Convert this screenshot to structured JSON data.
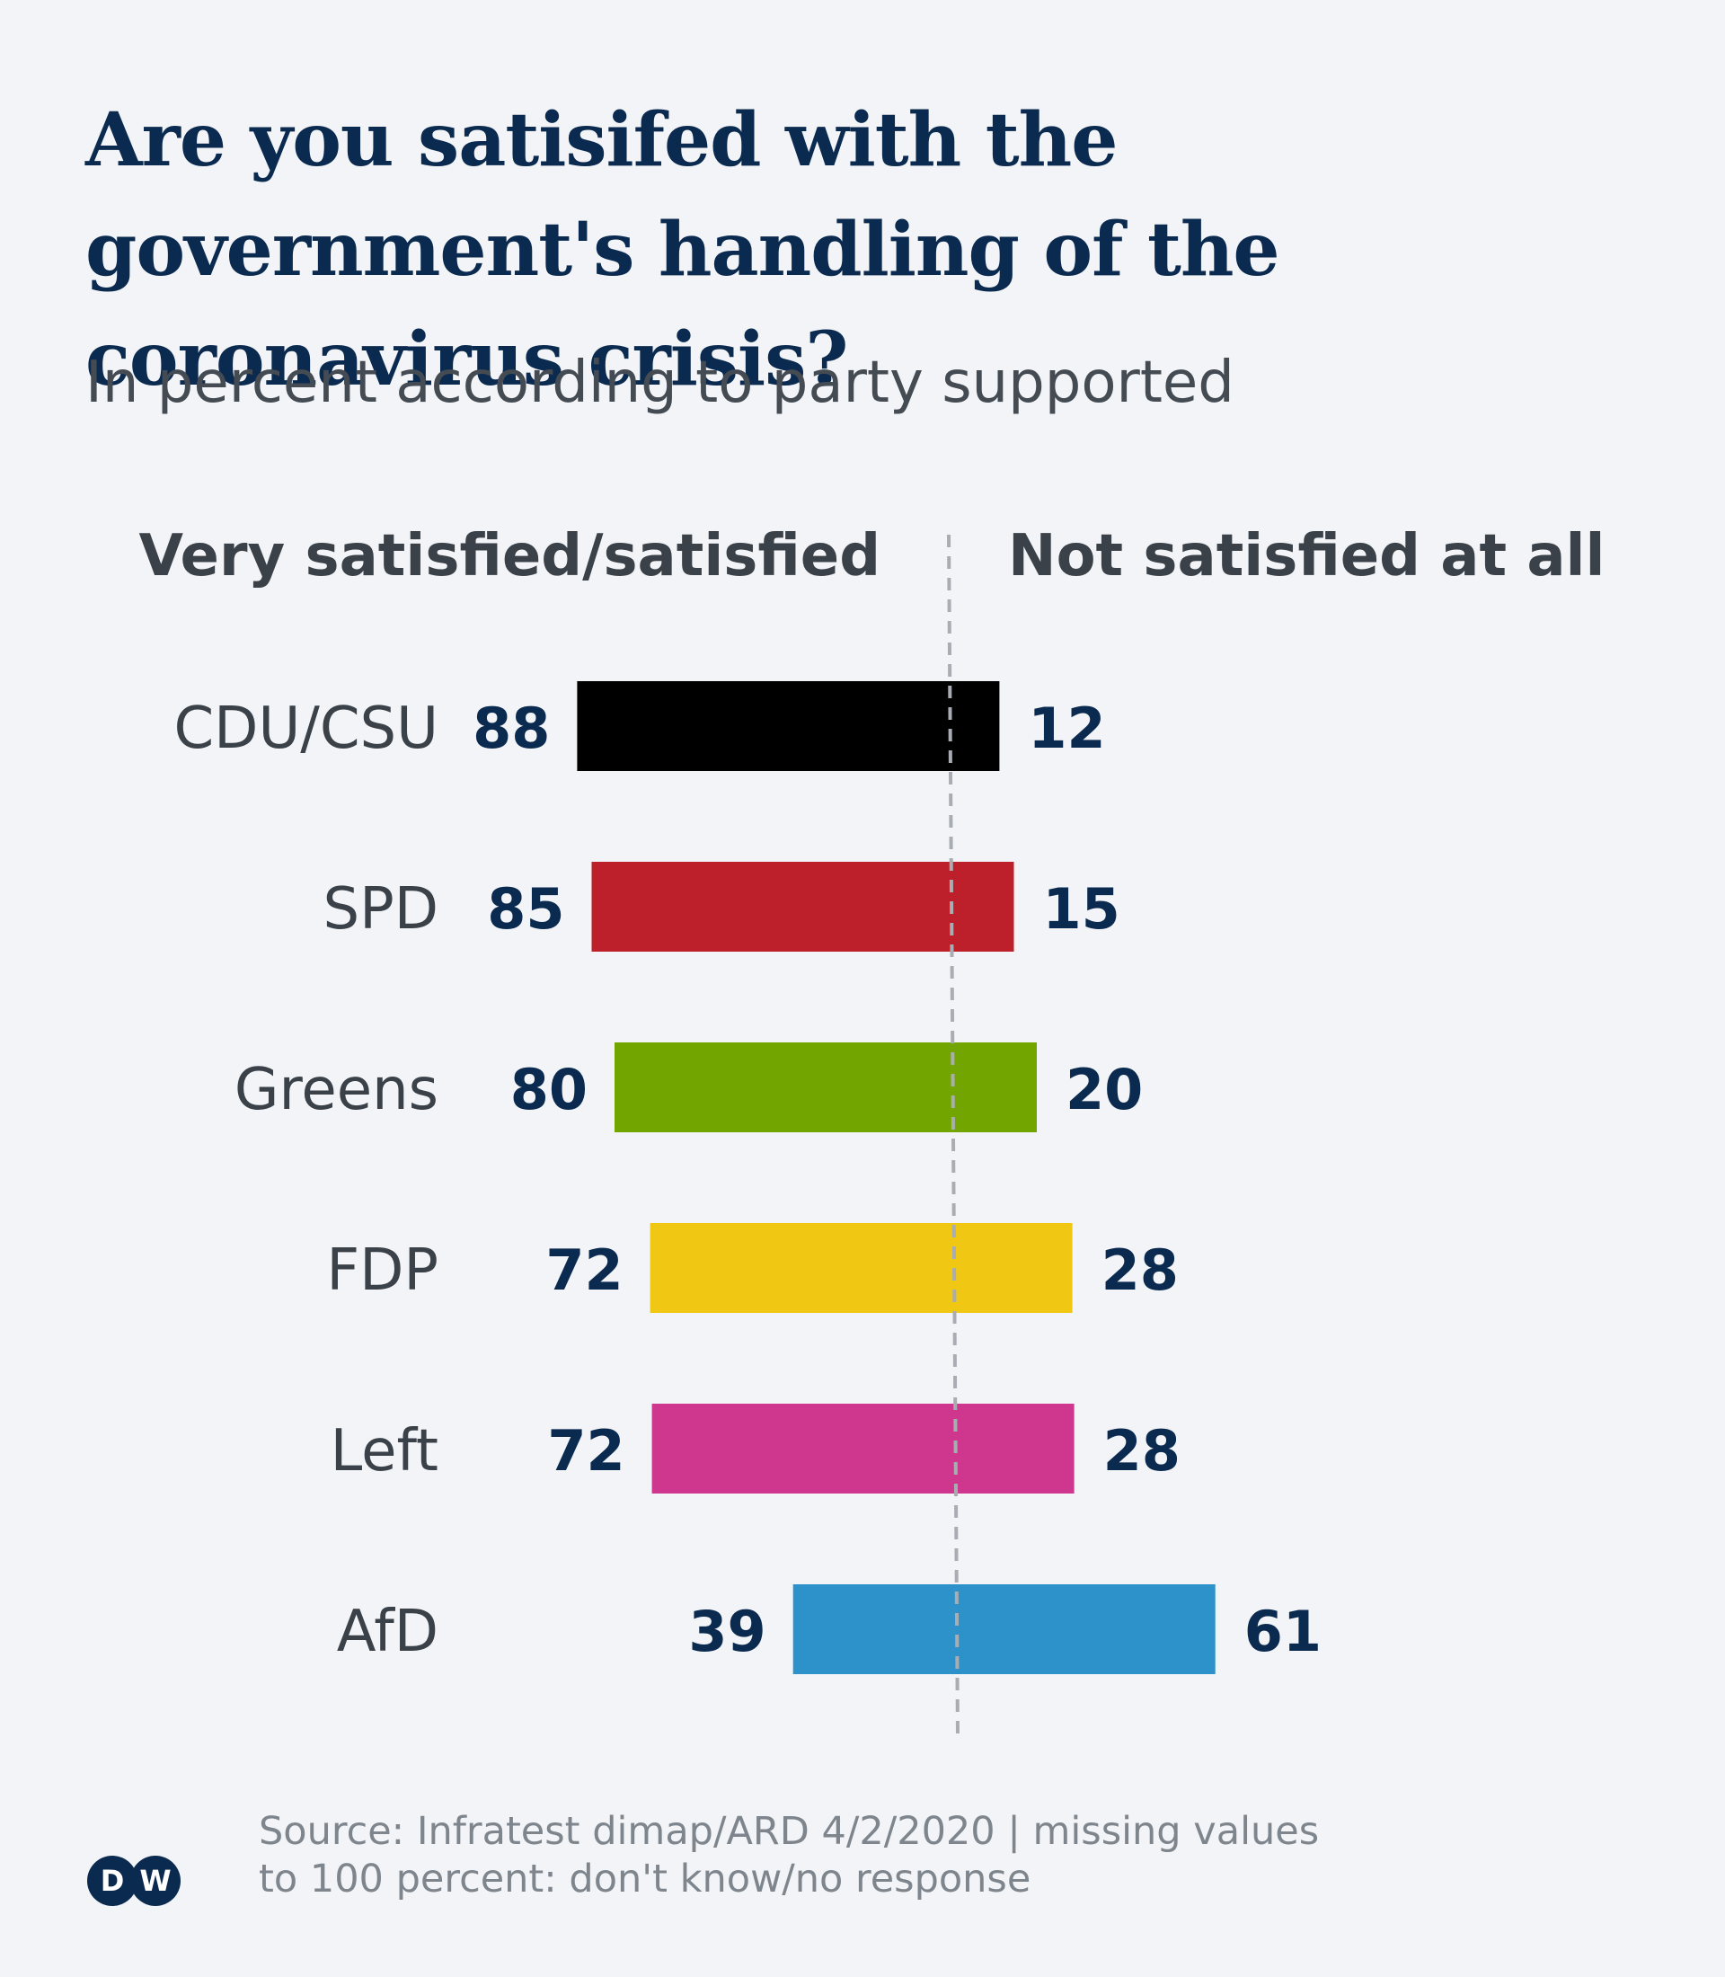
{
  "title": "Are you satisifed with the government's handling of the coronavirus crisis?",
  "subtitle": "In percent according to party supported",
  "source": {
    "line1": "Source: Infratest dimap/ARD 4/2/2020 | missing values",
    "line2": "to 100 percent: don't know/no response"
  },
  "logo": {
    "icon": "dw-logo-icon",
    "text": "DW",
    "color": "#0b2a4f"
  },
  "chart_data": {
    "type": "bar",
    "orientation": "horizontal-diverging",
    "left_header": "Very satisfied/satisfied",
    "right_header": "Not satisfied at all",
    "categories": [
      "CDU/CSU",
      "SPD",
      "Greens",
      "FDP",
      "Left",
      "AfD"
    ],
    "series": [
      {
        "name": "Very satisfied/satisfied",
        "values": [
          88,
          85,
          80,
          72,
          72,
          39
        ]
      },
      {
        "name": "Not satisfied at all",
        "values": [
          12,
          15,
          20,
          28,
          28,
          61
        ]
      }
    ],
    "colors": [
      "#000000",
      "#bd202b",
      "#72a500",
      "#f0c814",
      "#cf368d",
      "#2d92c9"
    ],
    "center_line": "dashed",
    "xlim": [
      0,
      100
    ]
  }
}
